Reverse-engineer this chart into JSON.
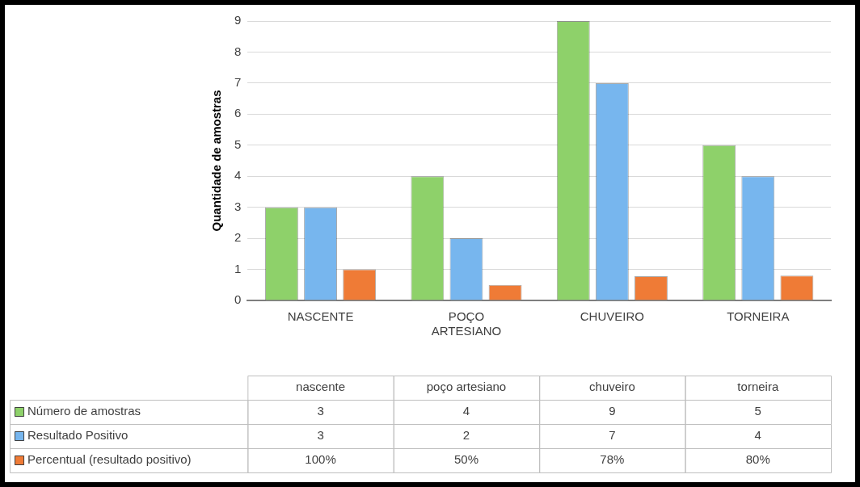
{
  "chart_data": {
    "type": "bar",
    "ylabel": "Quantidade de amostras",
    "categories": [
      "NASCENTE",
      "POÇO ARTESIANO",
      "CHUVEIRO",
      "TORNEIRA"
    ],
    "series": [
      {
        "name": "Número de amostras",
        "color": "#8ed16a",
        "values": [
          3,
          4,
          9,
          5
        ]
      },
      {
        "name": "Resultado Positivo",
        "color": "#77b6ee",
        "values": [
          3,
          2,
          7,
          4
        ]
      },
      {
        "name": "Percentual (resultado positivo)",
        "color": "#ef7b36",
        "values": [
          1,
          0.5,
          0.78,
          0.8
        ],
        "value_labels": [
          "100%",
          "50%",
          "78%",
          "80%"
        ]
      }
    ],
    "annotations": [
      "nascente",
      "poço artesiano",
      "chuveiro",
      "torneira"
    ],
    "ylim": [
      0,
      9
    ],
    "yticks": [
      0,
      1,
      2,
      3,
      4,
      5,
      6,
      7,
      8,
      9
    ],
    "grid": "y",
    "legend": "bottom",
    "data_labels": true
  }
}
